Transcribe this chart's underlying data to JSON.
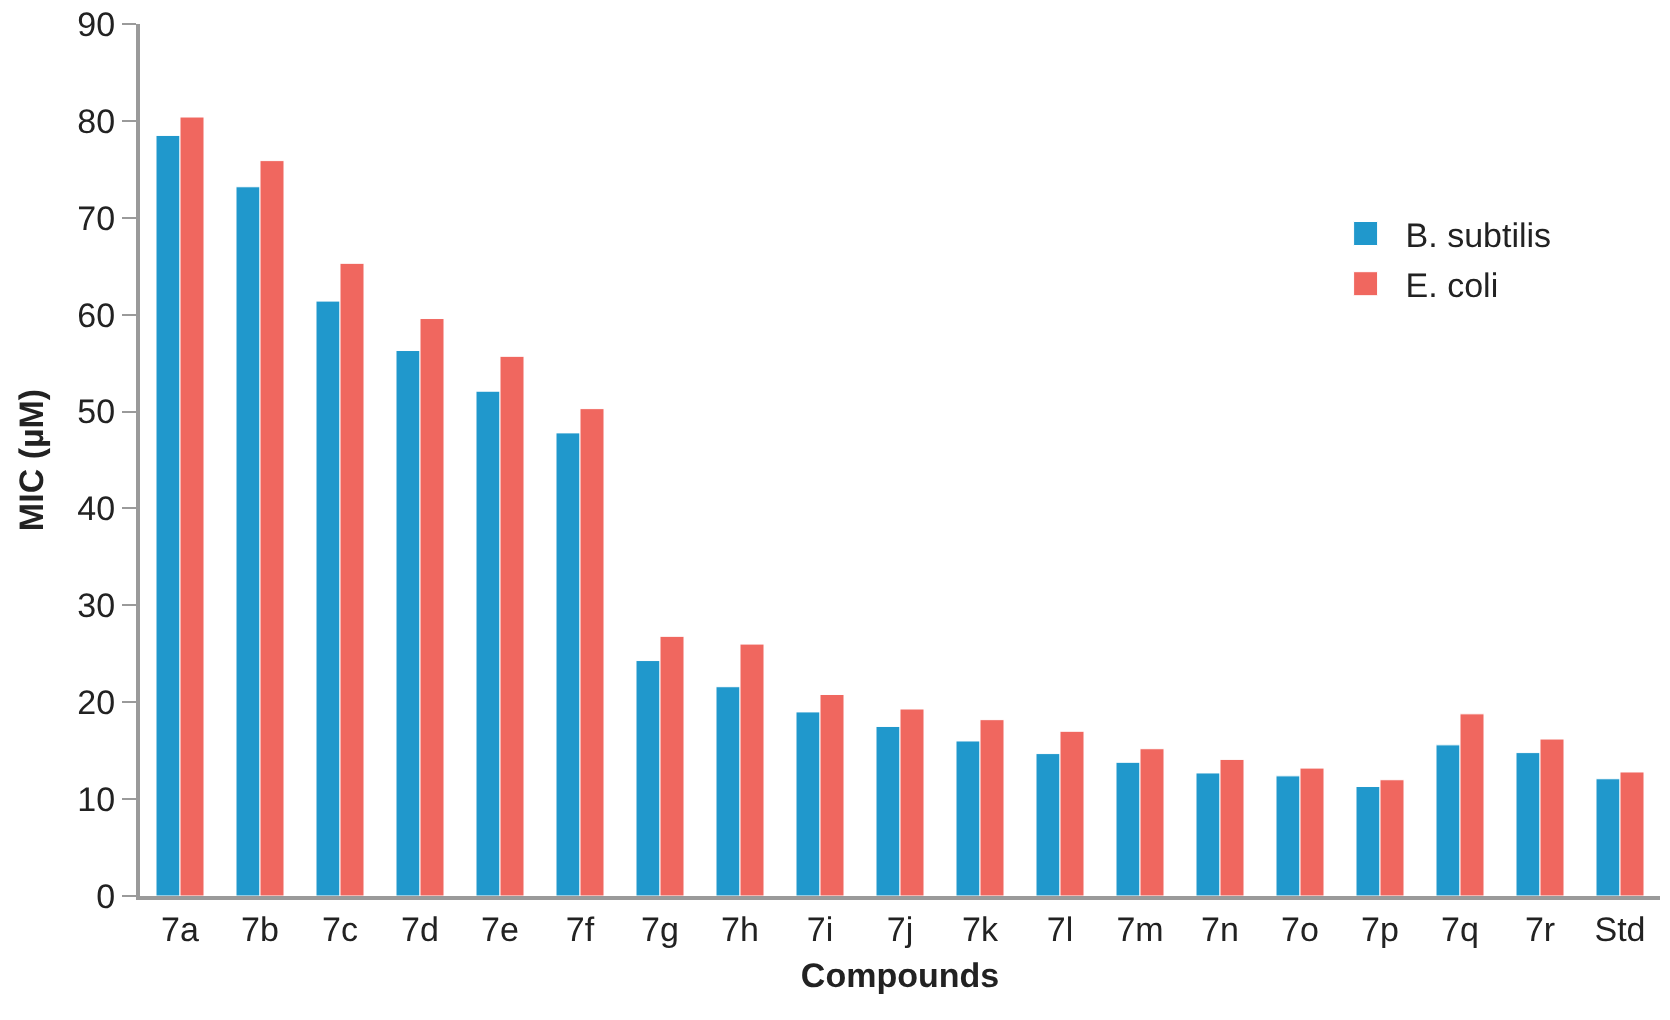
{
  "chart_data": {
    "type": "bar",
    "xlabel": "Compounds",
    "ylabel": "MIC (µM)",
    "categories": [
      "7a",
      "7b",
      "7c",
      "7d",
      "7e",
      "7f",
      "7g",
      "7h",
      "7i",
      "7j",
      "7k",
      "7l",
      "7m",
      "7n",
      "7o",
      "7p",
      "7q",
      "7r",
      "Std"
    ],
    "series": [
      {
        "name": "B. subtilis",
        "color": "#2098cc",
        "values": [
          78.5,
          73.2,
          61.4,
          56.3,
          52.1,
          47.8,
          24.3,
          21.6,
          19.0,
          17.5,
          16.0,
          14.7,
          13.8,
          12.7,
          12.4,
          11.3,
          15.6,
          14.8,
          12.1
        ]
      },
      {
        "name": "E. coli",
        "color": "#f0675f",
        "values": [
          80.4,
          75.9,
          65.3,
          59.6,
          55.7,
          50.3,
          26.8,
          26.0,
          20.8,
          19.3,
          18.2,
          17.0,
          15.2,
          14.1,
          13.2,
          12.0,
          18.8,
          16.2,
          12.8
        ]
      }
    ],
    "ylim": [
      0,
      90
    ],
    "yticks": [
      0,
      10,
      20,
      30,
      40,
      50,
      60,
      70,
      80,
      90
    ],
    "grid": false,
    "legend": "top right"
  }
}
